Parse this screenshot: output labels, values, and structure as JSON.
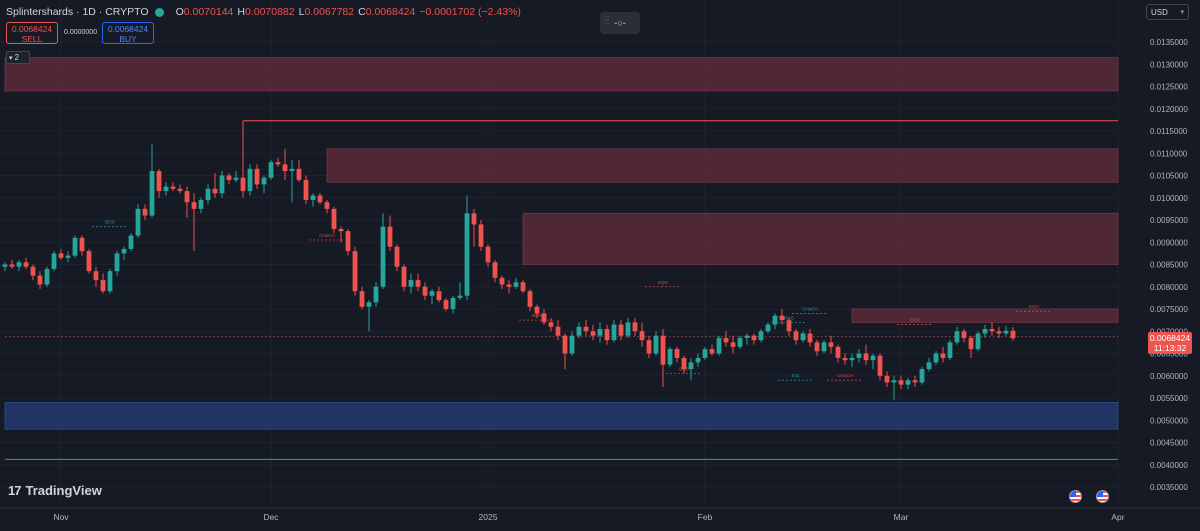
{
  "header": {
    "symbol": "Splintershards · 1D · CRYPTO",
    "open_key": "O",
    "open": "0.0070144",
    "high_key": "H",
    "high": "0.0070882",
    "low_key": "L",
    "low": "0.0067782",
    "close_key": "C",
    "close": "0.0068424",
    "change": "−0.0001702 (−2.43%)"
  },
  "trade": {
    "sell_price": "0.0068424",
    "sell_label": "SELL",
    "buy_price": "0.0068424",
    "buy_label": "BUY",
    "spread": "0.0000000"
  },
  "indicator_count": "2",
  "midbar_label": "-○-",
  "currency": "USD",
  "brand": "TradingView",
  "last_price": "0.0068424",
  "countdown": "11:13:32",
  "colors": {
    "up": "#26a69a",
    "down": "#ef5350",
    "background": "#161a25",
    "zone_red": "#5a2a38",
    "zone_blue": "#243a6e",
    "accent": "#2962ff"
  },
  "chart_data": {
    "type": "candlestick",
    "ylim": [
      0.0033,
      0.014
    ],
    "y_ticks": [
      "0.0035000",
      "0.0040000",
      "0.0045000",
      "0.0050000",
      "0.0055000",
      "0.0060000",
      "0.0065000",
      "0.0070000",
      "0.0075000",
      "0.0080000",
      "0.0085000",
      "0.0090000",
      "0.0095000",
      "0.0100000",
      "0.0105000",
      "0.0110000",
      "0.0115000",
      "0.0120000",
      "0.0125000",
      "0.0130000",
      "0.0135000"
    ],
    "x_ticks": [
      {
        "label": "Nov",
        "day": 8
      },
      {
        "label": "Dec",
        "day": 38
      },
      {
        "label": "2025",
        "day": 69
      },
      {
        "label": "Feb",
        "day": 100
      },
      {
        "label": "Mar",
        "day": 128
      },
      {
        "label": "Apr",
        "day": 159
      }
    ],
    "candles": [
      [
        0.00845,
        0.00855,
        0.00835,
        0.0085
      ],
      [
        0.0085,
        0.0086,
        0.0084,
        0.00845
      ],
      [
        0.00845,
        0.0086,
        0.00835,
        0.00855
      ],
      [
        0.00855,
        0.00865,
        0.0084,
        0.00845
      ],
      [
        0.00845,
        0.0085,
        0.00815,
        0.00825
      ],
      [
        0.00825,
        0.00835,
        0.00795,
        0.00805
      ],
      [
        0.00805,
        0.00845,
        0.008,
        0.0084
      ],
      [
        0.0084,
        0.0088,
        0.00835,
        0.00875
      ],
      [
        0.00875,
        0.00885,
        0.0086,
        0.00865
      ],
      [
        0.00865,
        0.0088,
        0.00855,
        0.0087
      ],
      [
        0.0087,
        0.00915,
        0.00865,
        0.0091
      ],
      [
        0.0091,
        0.00915,
        0.0087,
        0.0088
      ],
      [
        0.0088,
        0.00885,
        0.0083,
        0.00835
      ],
      [
        0.00835,
        0.00845,
        0.008,
        0.00815
      ],
      [
        0.00815,
        0.0083,
        0.00785,
        0.0079
      ],
      [
        0.0079,
        0.0084,
        0.00785,
        0.00835
      ],
      [
        0.00835,
        0.0088,
        0.00825,
        0.00875
      ],
      [
        0.00875,
        0.0089,
        0.0086,
        0.00885
      ],
      [
        0.00885,
        0.0092,
        0.0088,
        0.00915
      ],
      [
        0.00915,
        0.00985,
        0.0091,
        0.00975
      ],
      [
        0.00975,
        0.00985,
        0.0095,
        0.0096
      ],
      [
        0.0096,
        0.0112,
        0.00955,
        0.0106
      ],
      [
        0.0106,
        0.01065,
        0.01,
        0.01015
      ],
      [
        0.01015,
        0.01035,
        0.01005,
        0.01025
      ],
      [
        0.01025,
        0.01035,
        0.01015,
        0.0102
      ],
      [
        0.0102,
        0.0103,
        0.0101,
        0.01015
      ],
      [
        0.01015,
        0.01025,
        0.00955,
        0.0099
      ],
      [
        0.0099,
        0.0101,
        0.0088,
        0.00975
      ],
      [
        0.00975,
        0.01,
        0.00965,
        0.00995
      ],
      [
        0.00995,
        0.0103,
        0.00985,
        0.0102
      ],
      [
        0.0102,
        0.01055,
        0.01,
        0.0101
      ],
      [
        0.0101,
        0.0106,
        0.01,
        0.0105
      ],
      [
        0.0105,
        0.01055,
        0.0103,
        0.0104
      ],
      [
        0.0104,
        0.0106,
        0.01035,
        0.01045
      ],
      [
        0.01045,
        0.0106,
        0.01,
        0.01015
      ],
      [
        0.01015,
        0.01075,
        0.01005,
        0.01065
      ],
      [
        0.01065,
        0.01075,
        0.0102,
        0.0103
      ],
      [
        0.0103,
        0.0105,
        0.0101,
        0.01045
      ],
      [
        0.01045,
        0.01085,
        0.0104,
        0.0108
      ],
      [
        0.0108,
        0.0109,
        0.0107,
        0.01075
      ],
      [
        0.01075,
        0.0111,
        0.0104,
        0.0106
      ],
      [
        0.0106,
        0.01085,
        0.0099,
        0.01065
      ],
      [
        0.01065,
        0.01085,
        0.01035,
        0.0104
      ],
      [
        0.0104,
        0.0105,
        0.00985,
        0.00995
      ],
      [
        0.00995,
        0.0101,
        0.0098,
        0.01005
      ],
      [
        0.01005,
        0.0101,
        0.00985,
        0.0099
      ],
      [
        0.0099,
        0.00995,
        0.00965,
        0.00975
      ],
      [
        0.00975,
        0.0098,
        0.0092,
        0.0093
      ],
      [
        0.0093,
        0.00935,
        0.009,
        0.00925
      ],
      [
        0.00925,
        0.0093,
        0.0087,
        0.0088
      ],
      [
        0.0088,
        0.0089,
        0.0078,
        0.0079
      ],
      [
        0.0079,
        0.008,
        0.0075,
        0.00755
      ],
      [
        0.00755,
        0.0077,
        0.007,
        0.00765
      ],
      [
        0.00765,
        0.0081,
        0.00755,
        0.008
      ],
      [
        0.008,
        0.00965,
        0.00795,
        0.00935
      ],
      [
        0.00935,
        0.0096,
        0.0088,
        0.0089
      ],
      [
        0.0089,
        0.00895,
        0.00835,
        0.00845
      ],
      [
        0.00845,
        0.0085,
        0.0079,
        0.008
      ],
      [
        0.008,
        0.0083,
        0.00785,
        0.00815
      ],
      [
        0.00815,
        0.0083,
        0.0079,
        0.008
      ],
      [
        0.008,
        0.0081,
        0.0077,
        0.0078
      ],
      [
        0.0078,
        0.00795,
        0.0076,
        0.0079
      ],
      [
        0.0079,
        0.008,
        0.00765,
        0.0077
      ],
      [
        0.0077,
        0.00775,
        0.00745,
        0.0075
      ],
      [
        0.0075,
        0.0078,
        0.0074,
        0.00775
      ],
      [
        0.00775,
        0.0081,
        0.0077,
        0.0078
      ],
      [
        0.0078,
        0.01005,
        0.0077,
        0.00965
      ],
      [
        0.00965,
        0.00975,
        0.0089,
        0.0094
      ],
      [
        0.0094,
        0.0095,
        0.0088,
        0.0089
      ],
      [
        0.0089,
        0.00895,
        0.00845,
        0.00855
      ],
      [
        0.00855,
        0.0086,
        0.0081,
        0.0082
      ],
      [
        0.0082,
        0.00825,
        0.00795,
        0.00805
      ],
      [
        0.00805,
        0.00815,
        0.00785,
        0.008
      ],
      [
        0.008,
        0.0082,
        0.00795,
        0.0081
      ],
      [
        0.0081,
        0.00815,
        0.00785,
        0.0079
      ],
      [
        0.0079,
        0.00795,
        0.00745,
        0.00755
      ],
      [
        0.00755,
        0.0076,
        0.0073,
        0.0074
      ],
      [
        0.0074,
        0.0075,
        0.00715,
        0.0072
      ],
      [
        0.0072,
        0.0073,
        0.007,
        0.0071
      ],
      [
        0.0071,
        0.00725,
        0.0068,
        0.0069
      ],
      [
        0.0069,
        0.00695,
        0.00615,
        0.0065
      ],
      [
        0.0065,
        0.007,
        0.00645,
        0.0069
      ],
      [
        0.0069,
        0.0072,
        0.00685,
        0.0071
      ],
      [
        0.0071,
        0.00725,
        0.0069,
        0.007
      ],
      [
        0.007,
        0.00715,
        0.0068,
        0.0069
      ],
      [
        0.0069,
        0.0072,
        0.00675,
        0.00705
      ],
      [
        0.00705,
        0.00715,
        0.0067,
        0.0068
      ],
      [
        0.0068,
        0.00725,
        0.00675,
        0.00715
      ],
      [
        0.00715,
        0.00725,
        0.0068,
        0.0069
      ],
      [
        0.0069,
        0.0073,
        0.00685,
        0.0072
      ],
      [
        0.0072,
        0.0073,
        0.0069,
        0.007
      ],
      [
        0.007,
        0.0072,
        0.00665,
        0.0068
      ],
      [
        0.0068,
        0.0069,
        0.0064,
        0.0065
      ],
      [
        0.0065,
        0.007,
        0.00645,
        0.0069
      ],
      [
        0.0069,
        0.00705,
        0.00575,
        0.00625
      ],
      [
        0.00625,
        0.00665,
        0.0062,
        0.0066
      ],
      [
        0.0066,
        0.00665,
        0.0063,
        0.0064
      ],
      [
        0.0064,
        0.00645,
        0.00605,
        0.00615
      ],
      [
        0.00615,
        0.0064,
        0.0059,
        0.0063
      ],
      [
        0.0063,
        0.0065,
        0.0062,
        0.0064
      ],
      [
        0.0064,
        0.00665,
        0.00635,
        0.0066
      ],
      [
        0.0066,
        0.0067,
        0.00645,
        0.0065
      ],
      [
        0.0065,
        0.0069,
        0.00645,
        0.00685
      ],
      [
        0.00685,
        0.007,
        0.00665,
        0.00675
      ],
      [
        0.00675,
        0.0069,
        0.0065,
        0.00665
      ],
      [
        0.00665,
        0.0069,
        0.0066,
        0.00685
      ],
      [
        0.00685,
        0.00695,
        0.0067,
        0.0069
      ],
      [
        0.0069,
        0.00695,
        0.0067,
        0.0068
      ],
      [
        0.0068,
        0.00705,
        0.00675,
        0.007
      ],
      [
        0.007,
        0.0072,
        0.00695,
        0.00715
      ],
      [
        0.00715,
        0.0074,
        0.00705,
        0.00735
      ],
      [
        0.00735,
        0.0075,
        0.00715,
        0.00725
      ],
      [
        0.00725,
        0.0073,
        0.0069,
        0.007
      ],
      [
        0.007,
        0.00705,
        0.0067,
        0.0068
      ],
      [
        0.0068,
        0.007,
        0.00675,
        0.00695
      ],
      [
        0.00695,
        0.00705,
        0.00665,
        0.00675
      ],
      [
        0.00675,
        0.0068,
        0.00645,
        0.00655
      ],
      [
        0.00655,
        0.0068,
        0.0065,
        0.00675
      ],
      [
        0.00675,
        0.0069,
        0.0065,
        0.00665
      ],
      [
        0.00665,
        0.0067,
        0.0063,
        0.0064
      ],
      [
        0.0064,
        0.0065,
        0.00625,
        0.00635
      ],
      [
        0.00635,
        0.0065,
        0.0062,
        0.0064
      ],
      [
        0.0064,
        0.0066,
        0.0063,
        0.0065
      ],
      [
        0.0065,
        0.0067,
        0.00625,
        0.00635
      ],
      [
        0.00635,
        0.0065,
        0.00615,
        0.00645
      ],
      [
        0.00645,
        0.0065,
        0.0059,
        0.006
      ],
      [
        0.006,
        0.0061,
        0.00575,
        0.00585
      ],
      [
        0.00585,
        0.006,
        0.00545,
        0.0059
      ],
      [
        0.0059,
        0.006,
        0.0057,
        0.0058
      ],
      [
        0.0058,
        0.00595,
        0.0057,
        0.0059
      ],
      [
        0.0059,
        0.006,
        0.00575,
        0.00585
      ],
      [
        0.00585,
        0.0062,
        0.0058,
        0.00615
      ],
      [
        0.00615,
        0.0064,
        0.0061,
        0.0063
      ],
      [
        0.0063,
        0.00655,
        0.00625,
        0.0065
      ],
      [
        0.0065,
        0.00665,
        0.0063,
        0.0064
      ],
      [
        0.0064,
        0.0068,
        0.00635,
        0.00675
      ],
      [
        0.00675,
        0.0071,
        0.0067,
        0.007
      ],
      [
        0.007,
        0.00705,
        0.00675,
        0.00685
      ],
      [
        0.00685,
        0.0069,
        0.0064,
        0.0066
      ],
      [
        0.0066,
        0.007,
        0.00655,
        0.00695
      ],
      [
        0.00695,
        0.00715,
        0.00685,
        0.00705
      ],
      [
        0.00705,
        0.0072,
        0.0069,
        0.007
      ],
      [
        0.007,
        0.0071,
        0.00685,
        0.00695
      ],
      [
        0.00695,
        0.00712,
        0.0069,
        0.00701
      ],
      [
        0.00701,
        0.00709,
        0.00678,
        0.00684
      ]
    ],
    "zones": [
      {
        "kind": "supply",
        "y_top": 0.01315,
        "y_bottom": 0.0124,
        "x_from": 0,
        "x_to": 159
      },
      {
        "kind": "supply",
        "y_top": 0.0111,
        "y_bottom": 0.01035,
        "x_from": 46,
        "x_to": 159
      },
      {
        "kind": "supply",
        "y_top": 0.00965,
        "y_bottom": 0.0085,
        "x_from": 74,
        "x_to": 159
      },
      {
        "kind": "supply",
        "y_top": 0.0075,
        "y_bottom": 0.0072,
        "x_from": 121,
        "x_to": 159
      },
      {
        "kind": "demand",
        "y_top": 0.0054,
        "y_bottom": 0.0048,
        "x_from": 0,
        "x_to": 159
      }
    ],
    "levels": [
      {
        "y": 0.01173,
        "x_from": 34,
        "x_to": 159,
        "color": "#ef5350",
        "dashed": false
      },
      {
        "y": 0.00412,
        "x_from": 0,
        "x_to": 159,
        "color": "#26a69a",
        "dashed": false
      },
      {
        "y": 0.00688,
        "x_from": 0,
        "x_to": 159,
        "color": "#ef5350",
        "dashed": true
      }
    ],
    "structure_marks": [
      {
        "text": "BOS",
        "day": 15,
        "y": 0.00935,
        "color": "#26a69a"
      },
      {
        "text": "CHoCH",
        "day": 46,
        "y": 0.00905,
        "color": "#ef5350"
      },
      {
        "text": "BOS",
        "day": 76,
        "y": 0.00725,
        "color": "#ef5350"
      },
      {
        "text": "EQH",
        "day": 94,
        "y": 0.008,
        "color": "#ef5350"
      },
      {
        "text": "BOS",
        "day": 97,
        "y": 0.00605,
        "color": "#ef5350"
      },
      {
        "text": "BOS",
        "day": 112,
        "y": 0.0072,
        "color": "#26a69a"
      },
      {
        "text": "CHoCH",
        "day": 115,
        "y": 0.0074,
        "color": "#26a69a"
      },
      {
        "text": "EQL",
        "day": 113,
        "y": 0.0059,
        "color": "#26a69a"
      },
      {
        "text": "CHoCH",
        "day": 120,
        "y": 0.0059,
        "color": "#ef5350"
      },
      {
        "text": "EQH",
        "day": 130,
        "y": 0.00715,
        "color": "#ef5350"
      },
      {
        "text": "EQH",
        "day": 147,
        "y": 0.00745,
        "color": "#ef5350"
      }
    ]
  }
}
